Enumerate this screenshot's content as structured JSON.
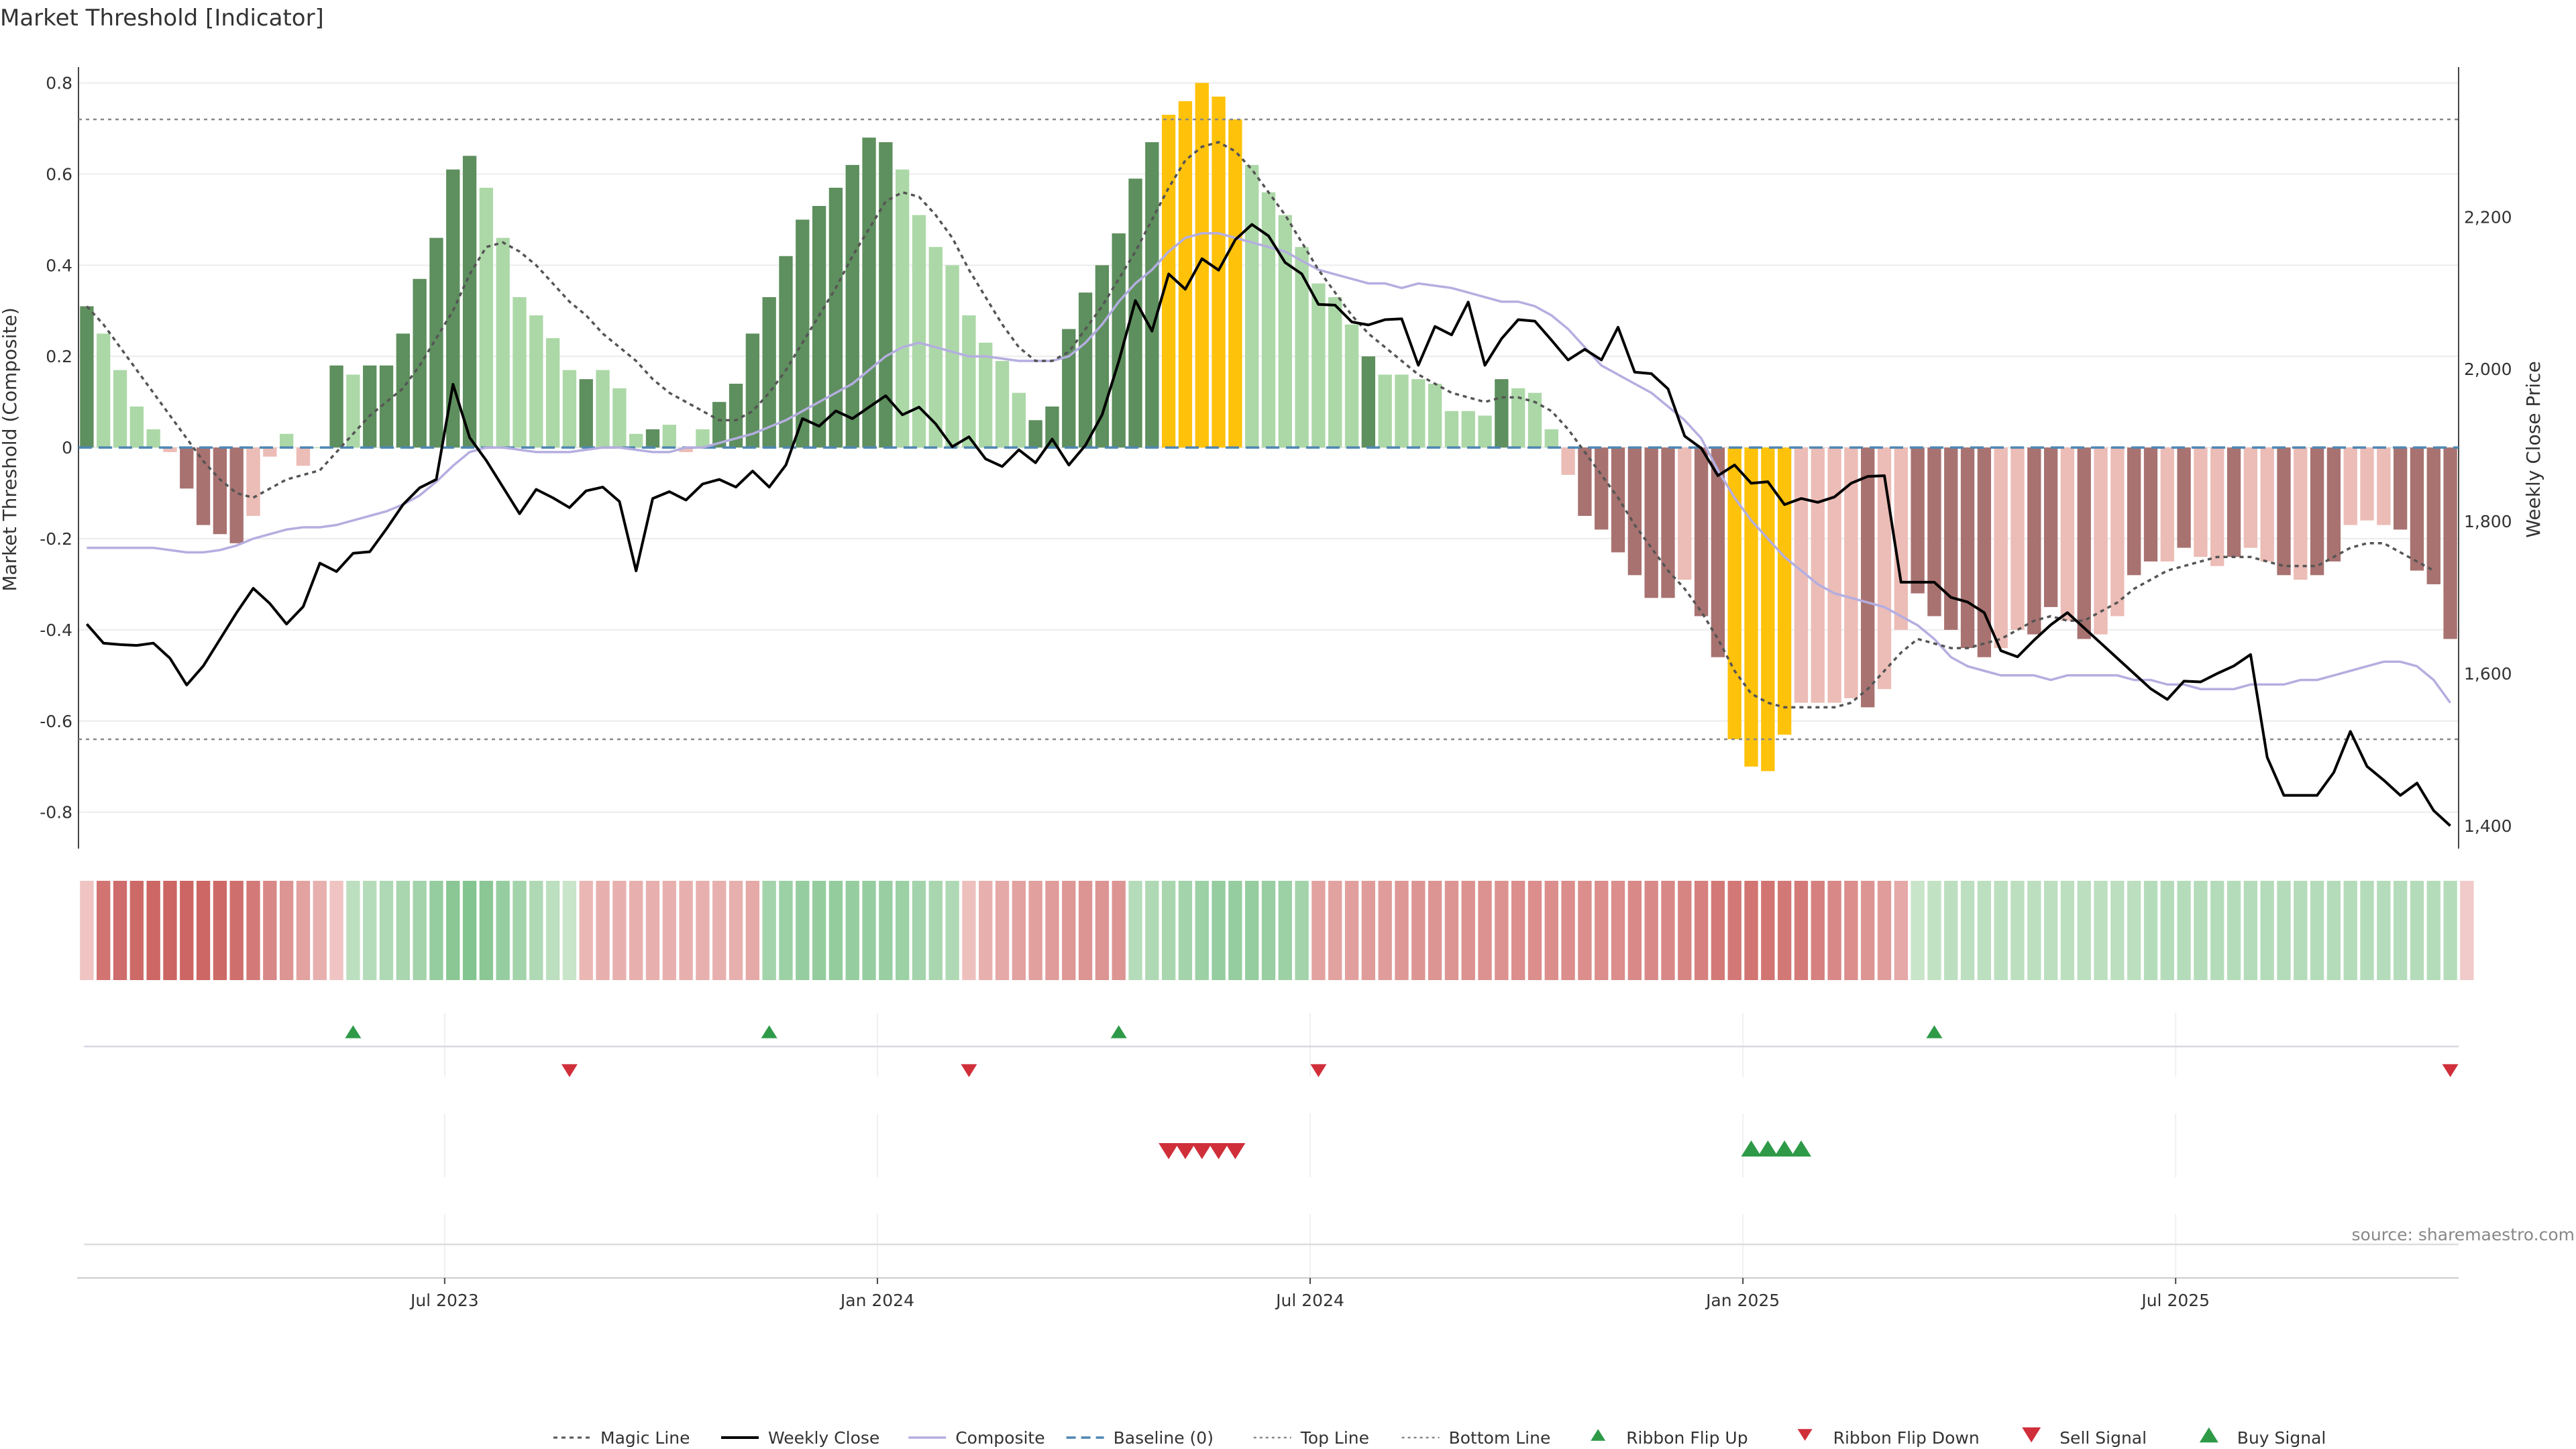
{
  "chart_data": {
    "type": "bar",
    "title": "Market Threshold [Indicator]",
    "ylabel": "Market Threshold (Composite)",
    "y2label": "Weekly Close Price",
    "ylim": [
      -0.88,
      0.82
    ],
    "y2lim": [
      1370,
      2388
    ],
    "y_ticks": [
      "0.8",
      "0.6",
      "0.4",
      "0.2",
      "0",
      "-0.2",
      "-0.4",
      "-0.6",
      "-0.8"
    ],
    "y2_ticks": [
      "2,200",
      "2,000",
      "1,800",
      "1,600",
      "1,400"
    ],
    "x_ticks": [
      "Jul 2023",
      "Jan 2024",
      "Jul 2024",
      "Jan 2025",
      "Jul 2025"
    ],
    "x_tick_weeks": [
      22,
      48,
      74,
      100,
      126
    ],
    "weeks": 143,
    "top_line": 0.72,
    "bottom_line": -0.64,
    "baseline": 0,
    "source_note": "source: sharemaestro.com",
    "colors": {
      "pos_dark": "#5e8f5e",
      "pos_light": "#acd8a7",
      "extreme_top": "#ffc20a",
      "neg_dark": "#a87270",
      "neg_light": "#ecbcb6",
      "extreme_bottom": "#ffc20a",
      "weekly_close": "#000000",
      "composite": "#b4aee0",
      "magic": "#555555",
      "baseline": "#4f86b3",
      "flip_up": "#2e9a47",
      "flip_down": "#d02f3a"
    },
    "bars": [
      0.31,
      0.25,
      0.17,
      0.09,
      0.04,
      -0.01,
      -0.09,
      -0.17,
      -0.19,
      -0.21,
      -0.15,
      -0.02,
      0.03,
      -0.04,
      0.0,
      0.18,
      0.16,
      0.18,
      0.18,
      0.25,
      0.37,
      0.46,
      0.61,
      0.64,
      0.57,
      0.46,
      0.33,
      0.29,
      0.24,
      0.17,
      0.15,
      0.17,
      0.13,
      0.03,
      0.04,
      0.05,
      -0.01,
      0.04,
      0.1,
      0.14,
      0.25,
      0.33,
      0.42,
      0.5,
      0.53,
      0.57,
      0.62,
      0.68,
      0.67,
      0.61,
      0.51,
      0.44,
      0.4,
      0.29,
      0.23,
      0.19,
      0.12,
      0.06,
      0.09,
      0.26,
      0.34,
      0.4,
      0.47,
      0.59,
      0.67,
      0.73,
      0.76,
      0.8,
      0.77,
      0.72,
      0.62,
      0.56,
      0.51,
      0.44,
      0.36,
      0.33,
      0.27,
      0.2,
      0.16,
      0.16,
      0.15,
      0.14,
      0.08,
      0.08,
      0.07,
      0.15,
      0.13,
      0.12,
      0.04,
      -0.06,
      -0.15,
      -0.18,
      -0.23,
      -0.28,
      -0.33,
      -0.33,
      -0.29,
      -0.37,
      -0.46,
      -0.64,
      -0.7,
      -0.71,
      -0.63,
      -0.56,
      -0.56,
      -0.56,
      -0.55,
      -0.57,
      -0.53,
      -0.4,
      -0.32,
      -0.37,
      -0.4,
      -0.44,
      -0.46,
      -0.44,
      -0.4,
      -0.41,
      -0.35,
      -0.38,
      -0.42,
      -0.41,
      -0.37,
      -0.28,
      -0.25,
      -0.25,
      -0.22,
      -0.24,
      -0.26,
      -0.24,
      -0.22,
      -0.25,
      -0.28,
      -0.29,
      -0.28,
      -0.25,
      -0.17,
      -0.16,
      -0.17,
      -0.18,
      -0.27,
      -0.3,
      -0.42
    ],
    "shade": [
      0,
      1,
      1,
      1,
      1,
      1,
      0,
      0,
      0,
      0,
      1,
      1,
      1,
      1,
      1,
      0,
      1,
      0,
      0,
      0,
      0,
      0,
      0,
      0,
      1,
      1,
      1,
      1,
      1,
      1,
      0,
      1,
      1,
      1,
      0,
      1,
      1,
      1,
      0,
      0,
      0,
      0,
      0,
      0,
      0,
      0,
      0,
      0,
      0,
      1,
      1,
      1,
      1,
      1,
      1,
      1,
      1,
      0,
      0,
      0,
      0,
      0,
      0,
      0,
      0,
      2,
      2,
      2,
      2,
      2,
      1,
      1,
      1,
      1,
      1,
      1,
      1,
      0,
      1,
      1,
      1,
      1,
      1,
      1,
      1,
      0,
      1,
      1,
      1,
      1,
      0,
      0,
      0,
      0,
      0,
      0,
      1,
      0,
      0,
      2,
      2,
      2,
      2,
      1,
      1,
      1,
      1,
      0,
      1,
      1,
      0,
      0,
      0,
      0,
      0,
      1,
      1,
      0,
      0,
      1,
      0,
      1,
      1,
      0,
      0,
      1,
      0,
      1,
      1,
      0,
      1,
      1,
      0,
      1,
      0,
      0,
      1,
      1,
      1,
      0,
      0,
      0,
      0
    ],
    "magic_line": [
      0.31,
      0.27,
      0.22,
      0.17,
      0.12,
      0.07,
      0.02,
      -0.03,
      -0.07,
      -0.1,
      -0.11,
      -0.09,
      -0.07,
      -0.06,
      -0.05,
      -0.01,
      0.03,
      0.07,
      0.1,
      0.13,
      0.18,
      0.24,
      0.3,
      0.38,
      0.44,
      0.45,
      0.43,
      0.4,
      0.36,
      0.32,
      0.29,
      0.25,
      0.22,
      0.19,
      0.15,
      0.12,
      0.1,
      0.08,
      0.06,
      0.06,
      0.08,
      0.12,
      0.17,
      0.23,
      0.29,
      0.35,
      0.42,
      0.48,
      0.54,
      0.56,
      0.55,
      0.51,
      0.46,
      0.39,
      0.33,
      0.27,
      0.22,
      0.19,
      0.19,
      0.21,
      0.26,
      0.31,
      0.37,
      0.43,
      0.5,
      0.57,
      0.63,
      0.66,
      0.67,
      0.65,
      0.61,
      0.56,
      0.51,
      0.45,
      0.39,
      0.34,
      0.29,
      0.25,
      0.22,
      0.19,
      0.16,
      0.14,
      0.12,
      0.11,
      0.1,
      0.11,
      0.11,
      0.1,
      0.08,
      0.04,
      -0.01,
      -0.06,
      -0.11,
      -0.17,
      -0.22,
      -0.27,
      -0.31,
      -0.36,
      -0.42,
      -0.49,
      -0.54,
      -0.56,
      -0.57,
      -0.57,
      -0.57,
      -0.57,
      -0.56,
      -0.53,
      -0.49,
      -0.45,
      -0.42,
      -0.43,
      -0.44,
      -0.44,
      -0.43,
      -0.42,
      -0.4,
      -0.38,
      -0.37,
      -0.38,
      -0.38,
      -0.36,
      -0.34,
      -0.31,
      -0.29,
      -0.27,
      -0.26,
      -0.25,
      -0.24,
      -0.24,
      -0.24,
      -0.25,
      -0.26,
      -0.26,
      -0.26,
      -0.24,
      -0.22,
      -0.21,
      -0.21,
      -0.23,
      -0.25,
      -0.27
    ],
    "composite": [
      -0.22,
      -0.22,
      -0.22,
      -0.22,
      -0.22,
      -0.225,
      -0.23,
      -0.23,
      -0.225,
      -0.215,
      -0.2,
      -0.19,
      -0.18,
      -0.175,
      -0.175,
      -0.17,
      -0.16,
      -0.15,
      -0.14,
      -0.125,
      -0.105,
      -0.075,
      -0.04,
      -0.01,
      0.0,
      0.0,
      -0.005,
      -0.01,
      -0.01,
      -0.01,
      -0.005,
      0.0,
      0.0,
      -0.005,
      -0.01,
      -0.01,
      0.0,
      0.0,
      0.01,
      0.02,
      0.03,
      0.045,
      0.06,
      0.08,
      0.1,
      0.12,
      0.14,
      0.17,
      0.2,
      0.22,
      0.23,
      0.22,
      0.21,
      0.2,
      0.2,
      0.195,
      0.19,
      0.19,
      0.19,
      0.2,
      0.23,
      0.27,
      0.32,
      0.36,
      0.39,
      0.43,
      0.46,
      0.47,
      0.47,
      0.46,
      0.45,
      0.44,
      0.43,
      0.41,
      0.39,
      0.38,
      0.37,
      0.36,
      0.36,
      0.35,
      0.36,
      0.355,
      0.35,
      0.34,
      0.33,
      0.32,
      0.32,
      0.31,
      0.29,
      0.26,
      0.22,
      0.18,
      0.16,
      0.14,
      0.12,
      0.09,
      0.06,
      0.02,
      -0.05,
      -0.11,
      -0.16,
      -0.2,
      -0.24,
      -0.27,
      -0.3,
      -0.32,
      -0.33,
      -0.34,
      -0.35,
      -0.37,
      -0.39,
      -0.42,
      -0.46,
      -0.48,
      -0.49,
      -0.5,
      -0.5,
      -0.5,
      -0.51,
      -0.5,
      -0.5,
      -0.5,
      -0.5,
      -0.51,
      -0.51,
      -0.52,
      -0.52,
      -0.53,
      -0.53,
      -0.53,
      -0.52,
      -0.52,
      -0.52,
      -0.51,
      -0.51,
      -0.5,
      -0.49,
      -0.48,
      -0.47,
      -0.47,
      -0.48,
      -0.51,
      -0.56
    ],
    "weekly_close": [
      1665,
      1640,
      1638,
      1637,
      1640,
      1620,
      1585,
      1610,
      1645,
      1680,
      1712,
      1692,
      1665,
      1688,
      1745,
      1734,
      1758,
      1760,
      1790,
      1822,
      1844,
      1855,
      1980,
      1910,
      1880,
      1845,
      1810,
      1842,
      1831,
      1818,
      1840,
      1845,
      1826,
      1735,
      1830,
      1839,
      1828,
      1849,
      1855,
      1845,
      1866,
      1845,
      1874,
      1935,
      1925,
      1945,
      1935,
      1950,
      1965,
      1940,
      1950,
      1928,
      1898,
      1911,
      1882,
      1872,
      1894,
      1877,
      1908,
      1874,
      1900,
      1940,
      2010,
      2090,
      2050,
      2125,
      2105,
      2145,
      2130,
      2170,
      2190,
      2175,
      2140,
      2125,
      2085,
      2084,
      2062,
      2058,
      2065,
      2066,
      2005,
      2056,
      2045,
      2088,
      2005,
      2040,
      2065,
      2063,
      2038,
      2012,
      2026,
      2012,
      2055,
      1996,
      1994,
      1974,
      1912,
      1896,
      1860,
      1874,
      1850,
      1852,
      1822,
      1830,
      1825,
      1832,
      1850,
      1859,
      1860,
      1720,
      1720,
      1720,
      1700,
      1694,
      1680,
      1630,
      1622,
      1644,
      1664,
      1680,
      1660,
      1640,
      1620,
      1600,
      1580,
      1566,
      1590,
      1589,
      1600,
      1610,
      1625,
      1490,
      1440,
      1440,
      1440,
      1470,
      1524,
      1478,
      1460,
      1440,
      1456,
      1420,
      1400
    ],
    "ribbon": [
      -0.15,
      -0.75,
      -0.8,
      -0.82,
      -0.84,
      -0.85,
      -0.85,
      -0.84,
      -0.82,
      -0.78,
      -0.7,
      -0.6,
      -0.5,
      -0.4,
      -0.3,
      -0.15,
      0.3,
      0.35,
      0.4,
      0.45,
      0.5,
      0.6,
      0.7,
      0.75,
      0.7,
      0.6,
      0.5,
      0.4,
      0.3,
      0.2,
      -0.25,
      -0.3,
      -0.3,
      -0.3,
      -0.3,
      -0.3,
      -0.3,
      -0.3,
      -0.3,
      -0.3,
      -0.35,
      0.5,
      0.55,
      0.6,
      0.62,
      0.62,
      0.6,
      0.6,
      0.58,
      0.55,
      0.5,
      0.45,
      0.4,
      -0.18,
      -0.3,
      -0.35,
      -0.4,
      -0.42,
      -0.45,
      -0.48,
      -0.5,
      -0.5,
      -0.5,
      0.35,
      0.4,
      0.45,
      0.5,
      0.55,
      0.6,
      0.6,
      0.6,
      0.58,
      0.55,
      0.5,
      -0.4,
      -0.4,
      -0.42,
      -0.45,
      -0.45,
      -0.48,
      -0.5,
      -0.5,
      -0.5,
      -0.52,
      -0.52,
      -0.52,
      -0.55,
      -0.55,
      -0.55,
      -0.55,
      -0.55,
      -0.55,
      -0.55,
      -0.58,
      -0.58,
      -0.6,
      -0.62,
      -0.65,
      -0.7,
      -0.72,
      -0.75,
      -0.75,
      -0.72,
      -0.7,
      -0.65,
      -0.6,
      -0.55,
      -0.5,
      -0.45,
      -0.35,
      0.2,
      0.25,
      0.3,
      0.3,
      0.3,
      0.3,
      0.3,
      0.3,
      0.3,
      0.3,
      0.3,
      0.3,
      0.3,
      0.3,
      0.35,
      0.35,
      0.35,
      0.35,
      0.35,
      0.35,
      0.35,
      0.35,
      0.35,
      0.35,
      0.35,
      0.35,
      0.35,
      0.35,
      0.35,
      0.35,
      0.35,
      0.35,
      0.35,
      -0.1
    ],
    "ribbon_flip_up": [
      16,
      41,
      62,
      111
    ],
    "ribbon_flip_down": [
      29,
      53,
      74,
      142
    ],
    "sell_signals": [
      65,
      66,
      67,
      68,
      69
    ],
    "buy_signals": [
      100,
      101,
      102,
      103
    ],
    "legend": [
      "Magic Line",
      "Weekly Close",
      "Composite",
      "Baseline (0)",
      "Top Line",
      "Bottom Line",
      "Ribbon Flip Up",
      "Ribbon Flip Down",
      "Sell Signal",
      "Buy Signal"
    ]
  }
}
